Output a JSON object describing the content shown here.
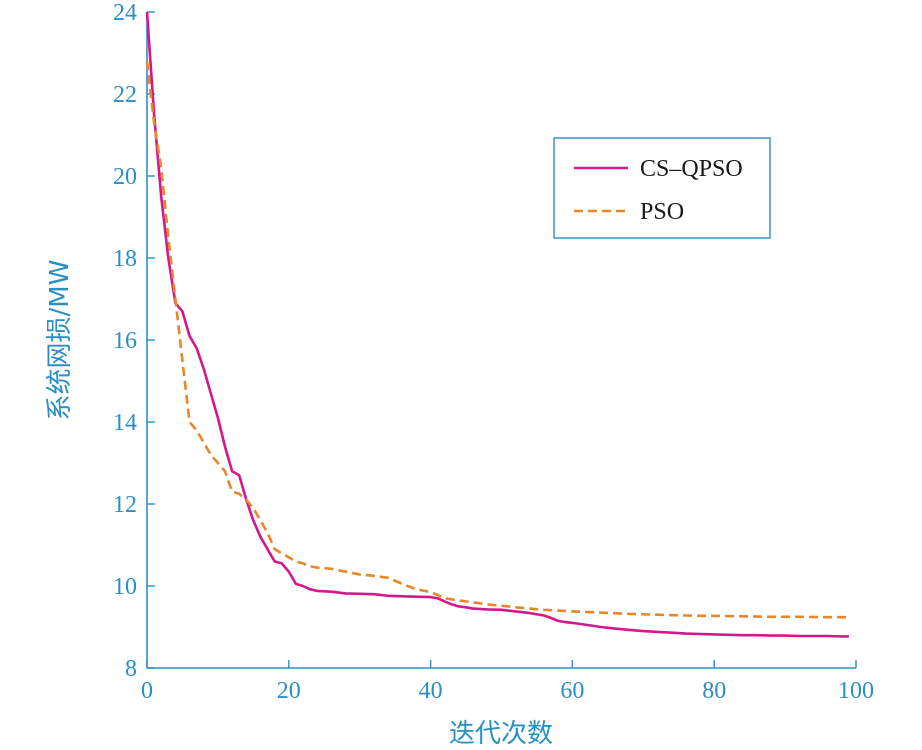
{
  "chart_data": {
    "type": "line",
    "xlabel": "迭代次数",
    "ylabel": "系统网损/MW",
    "xlim": [
      0,
      100
    ],
    "ylim": [
      8,
      24
    ],
    "xticks": [
      0,
      20,
      40,
      60,
      80,
      100
    ],
    "yticks": [
      8,
      10,
      12,
      14,
      16,
      18,
      20,
      22,
      24
    ],
    "grid": false,
    "legend_position": "top-right",
    "series": [
      {
        "name": "CS–QPSO",
        "color": "#d6168b",
        "dash": "solid",
        "x": [
          0,
          1,
          2,
          3,
          4,
          5,
          6,
          7,
          8,
          9,
          10,
          11,
          12,
          13,
          14,
          15,
          16,
          17,
          18,
          19,
          20,
          21,
          22,
          23,
          24,
          26,
          28,
          30,
          32,
          34,
          36,
          38,
          40,
          41,
          42,
          43,
          44,
          45,
          46,
          48,
          50,
          52,
          54,
          56,
          57,
          58,
          59,
          60,
          62,
          64,
          66,
          68,
          70,
          72,
          74,
          76,
          78,
          80,
          82,
          84,
          86,
          88,
          90,
          92,
          94,
          96,
          98,
          99
        ],
        "y": [
          24.0,
          21.5,
          19.5,
          18.0,
          16.9,
          16.7,
          16.1,
          15.8,
          15.3,
          14.7,
          14.1,
          13.4,
          12.8,
          12.7,
          12.1,
          11.6,
          11.2,
          10.9,
          10.6,
          10.55,
          10.35,
          10.05,
          10.0,
          9.92,
          9.88,
          9.86,
          9.82,
          9.81,
          9.8,
          9.76,
          9.75,
          9.74,
          9.73,
          9.7,
          9.62,
          9.55,
          9.5,
          9.48,
          9.45,
          9.43,
          9.42,
          9.38,
          9.34,
          9.28,
          9.22,
          9.15,
          9.12,
          9.1,
          9.05,
          9.0,
          8.96,
          8.93,
          8.9,
          8.88,
          8.86,
          8.84,
          8.83,
          8.82,
          8.81,
          8.8,
          8.8,
          8.79,
          8.79,
          8.78,
          8.78,
          8.78,
          8.77,
          8.77
        ]
      },
      {
        "name": "PSO",
        "color": "#e8862a",
        "dash": "dashed",
        "x": [
          0,
          1,
          2,
          3,
          4,
          5,
          6,
          7,
          8,
          9,
          10,
          11,
          12,
          13,
          14,
          15,
          16,
          17,
          18,
          19,
          20,
          21,
          22,
          23,
          24,
          26,
          28,
          30,
          32,
          34,
          36,
          38,
          40,
          41,
          42,
          44,
          46,
          48,
          50,
          52,
          54,
          56,
          58,
          60,
          64,
          68,
          72,
          76,
          80,
          84,
          88,
          92,
          96,
          99
        ],
        "y": [
          22.8,
          21.3,
          20.2,
          18.5,
          17.0,
          15.5,
          14.0,
          13.8,
          13.5,
          13.2,
          13.0,
          12.8,
          12.3,
          12.25,
          12.1,
          11.9,
          11.6,
          11.3,
          10.9,
          10.8,
          10.7,
          10.6,
          10.55,
          10.48,
          10.45,
          10.42,
          10.35,
          10.28,
          10.25,
          10.2,
          10.05,
          9.92,
          9.85,
          9.78,
          9.7,
          9.65,
          9.6,
          9.55,
          9.52,
          9.48,
          9.45,
          9.42,
          9.4,
          9.38,
          9.35,
          9.32,
          9.3,
          9.28,
          9.27,
          9.26,
          9.25,
          9.25,
          9.24,
          9.24
        ]
      }
    ]
  }
}
